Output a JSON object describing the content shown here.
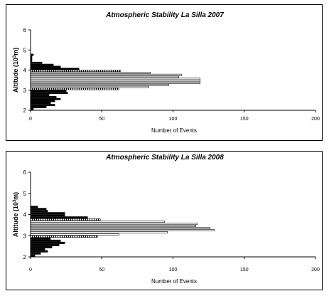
{
  "chart_data": [
    {
      "type": "bar",
      "orientation": "horizontal",
      "title": "Atmospheric Stability La Silla 2007",
      "xlabel": "Number of Events",
      "ylabel": "Altitude (10³m)",
      "ylabel_prefix": "Altitude (10",
      "ylabel_sup": "3",
      "ylabel_suffix": "m)",
      "xlim": [
        0,
        200
      ],
      "ylim": [
        2,
        6
      ],
      "xticks": [
        "0",
        "50",
        "100",
        "150",
        "200"
      ],
      "yticks": [
        "2",
        "3",
        "4",
        "5",
        "6"
      ],
      "grid": false,
      "legend": "none",
      "bar_height": 0.1,
      "bars": [
        {
          "y": 2.05,
          "value": 2,
          "fill": "solid"
        },
        {
          "y": 2.15,
          "value": 11,
          "fill": "solid"
        },
        {
          "y": 2.25,
          "value": 17,
          "fill": "solid"
        },
        {
          "y": 2.35,
          "value": 14,
          "fill": "solid"
        },
        {
          "y": 2.45,
          "value": 17,
          "fill": "solid"
        },
        {
          "y": 2.55,
          "value": 21,
          "fill": "solid"
        },
        {
          "y": 2.65,
          "value": 18,
          "fill": "solid"
        },
        {
          "y": 2.75,
          "value": 13,
          "fill": "solid"
        },
        {
          "y": 2.85,
          "value": 26,
          "fill": "solid"
        },
        {
          "y": 2.95,
          "value": 25,
          "fill": "solid"
        },
        {
          "y": 3.05,
          "value": 62,
          "fill": "striped"
        },
        {
          "y": 3.15,
          "value": 83,
          "fill": "open"
        },
        {
          "y": 3.25,
          "value": 97,
          "fill": "open"
        },
        {
          "y": 3.35,
          "value": 119,
          "fill": "open"
        },
        {
          "y": 3.45,
          "value": 119,
          "fill": "open"
        },
        {
          "y": 3.55,
          "value": 119,
          "fill": "open"
        },
        {
          "y": 3.65,
          "value": 104,
          "fill": "open"
        },
        {
          "y": 3.75,
          "value": 106,
          "fill": "open"
        },
        {
          "y": 3.85,
          "value": 84,
          "fill": "open"
        },
        {
          "y": 3.95,
          "value": 63,
          "fill": "striped"
        },
        {
          "y": 4.05,
          "value": 34,
          "fill": "solid"
        },
        {
          "y": 4.15,
          "value": 21,
          "fill": "solid"
        },
        {
          "y": 4.25,
          "value": 16,
          "fill": "solid"
        },
        {
          "y": 4.35,
          "value": 8,
          "fill": "solid"
        },
        {
          "y": 4.45,
          "value": 1,
          "fill": "solid"
        },
        {
          "y": 4.55,
          "value": 1,
          "fill": "solid"
        },
        {
          "y": 4.65,
          "value": 1,
          "fill": "solid"
        },
        {
          "y": 4.75,
          "value": 2,
          "fill": "solid"
        }
      ]
    },
    {
      "type": "bar",
      "orientation": "horizontal",
      "title": "Atmospheric Stability La Silla 2008",
      "xlabel": "Number of Events",
      "ylabel": "Altitude (10³m)",
      "ylabel_prefix": "Altitude (10",
      "ylabel_sup": "3",
      "ylabel_suffix": "m)",
      "xlim": [
        0,
        200
      ],
      "ylim": [
        2,
        6
      ],
      "xticks": [
        "0",
        "50",
        "100",
        "150",
        "200"
      ],
      "yticks": [
        "2",
        "3",
        "4",
        "5",
        "6"
      ],
      "grid": false,
      "legend": "none",
      "bar_height": 0.1,
      "bars": [
        {
          "y": 2.05,
          "value": 3,
          "fill": "solid"
        },
        {
          "y": 2.15,
          "value": 7,
          "fill": "solid"
        },
        {
          "y": 2.25,
          "value": 12,
          "fill": "solid"
        },
        {
          "y": 2.35,
          "value": 10,
          "fill": "solid"
        },
        {
          "y": 2.45,
          "value": 15,
          "fill": "solid"
        },
        {
          "y": 2.55,
          "value": 20,
          "fill": "solid"
        },
        {
          "y": 2.65,
          "value": 24,
          "fill": "solid"
        },
        {
          "y": 2.75,
          "value": 21,
          "fill": "solid"
        },
        {
          "y": 2.85,
          "value": 14,
          "fill": "solid"
        },
        {
          "y": 2.95,
          "value": 47,
          "fill": "striped"
        },
        {
          "y": 3.05,
          "value": 62,
          "fill": "open"
        },
        {
          "y": 3.15,
          "value": 96,
          "fill": "open"
        },
        {
          "y": 3.25,
          "value": 129,
          "fill": "open"
        },
        {
          "y": 3.35,
          "value": 126,
          "fill": "open"
        },
        {
          "y": 3.45,
          "value": 116,
          "fill": "open"
        },
        {
          "y": 3.55,
          "value": 117,
          "fill": "open"
        },
        {
          "y": 3.65,
          "value": 94,
          "fill": "open"
        },
        {
          "y": 3.75,
          "value": 49,
          "fill": "striped"
        },
        {
          "y": 3.85,
          "value": 40,
          "fill": "solid"
        },
        {
          "y": 3.95,
          "value": 24,
          "fill": "solid"
        },
        {
          "y": 4.05,
          "value": 24,
          "fill": "solid"
        },
        {
          "y": 4.15,
          "value": 12,
          "fill": "solid"
        },
        {
          "y": 4.25,
          "value": 11,
          "fill": "solid"
        },
        {
          "y": 4.35,
          "value": 5,
          "fill": "solid"
        }
      ]
    }
  ]
}
